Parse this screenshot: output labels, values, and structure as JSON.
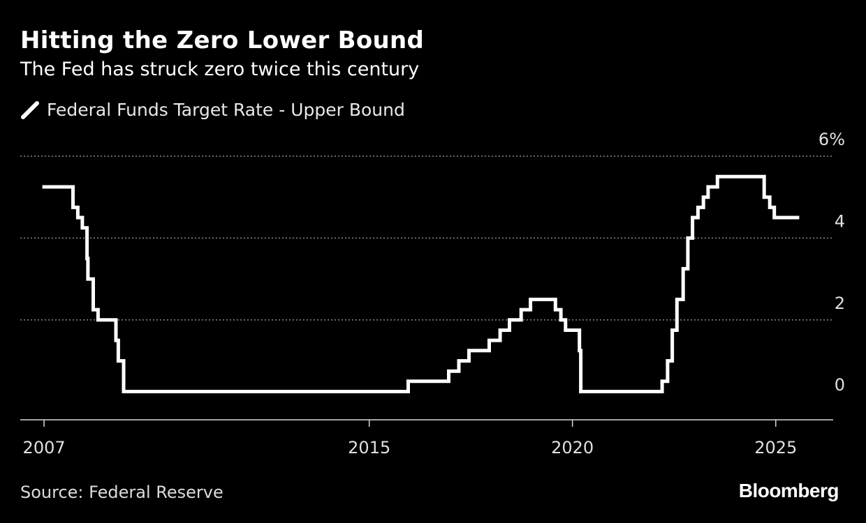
{
  "colors": {
    "background": "#000000",
    "text": "#ffffff",
    "series": "#ffffff",
    "grid": "#8a8a8a"
  },
  "chart_data": {
    "type": "line",
    "step": true,
    "title": "Hitting the Zero Lower Bound",
    "subtitle": "The Fed has struck zero twice this century",
    "xlabel": "",
    "ylabel": "",
    "xlim": [
      "2006-06-01",
      "2026-06-01"
    ],
    "ylim": [
      -0.44,
      6
    ],
    "grid": true,
    "legend_position": "top-left",
    "y_axis_side": "right",
    "y_ticks": [
      {
        "value": 0,
        "label": "0"
      },
      {
        "value": 2,
        "label": "2"
      },
      {
        "value": 4,
        "label": "4"
      },
      {
        "value": 6,
        "label": "6%"
      }
    ],
    "x_ticks": [
      {
        "date": "2007-01-01",
        "label": "2007"
      },
      {
        "date": "2015-01-01",
        "label": "2015"
      },
      {
        "date": "2020-01-01",
        "label": "2020"
      },
      {
        "date": "2025-01-01",
        "label": "2025"
      }
    ],
    "series": [
      {
        "name": "Federal Funds Target Rate - Upper Bound",
        "points": [
          [
            "2007-01-01",
            5.25
          ],
          [
            "2007-09-18",
            4.75
          ],
          [
            "2007-10-31",
            4.5
          ],
          [
            "2007-12-11",
            4.25
          ],
          [
            "2008-01-22",
            3.5
          ],
          [
            "2008-01-30",
            3.0
          ],
          [
            "2008-03-18",
            2.25
          ],
          [
            "2008-04-30",
            2.0
          ],
          [
            "2008-10-08",
            1.5
          ],
          [
            "2008-10-29",
            1.0
          ],
          [
            "2008-12-16",
            0.25
          ],
          [
            "2015-12-17",
            0.5
          ],
          [
            "2016-12-15",
            0.75
          ],
          [
            "2017-03-16",
            1.0
          ],
          [
            "2017-06-15",
            1.25
          ],
          [
            "2017-12-14",
            1.5
          ],
          [
            "2018-03-22",
            1.75
          ],
          [
            "2018-06-14",
            2.0
          ],
          [
            "2018-09-27",
            2.25
          ],
          [
            "2018-12-20",
            2.5
          ],
          [
            "2019-08-01",
            2.25
          ],
          [
            "2019-09-19",
            2.0
          ],
          [
            "2019-10-31",
            1.75
          ],
          [
            "2020-03-04",
            1.25
          ],
          [
            "2020-03-16",
            0.25
          ],
          [
            "2022-03-17",
            0.5
          ],
          [
            "2022-05-05",
            1.0
          ],
          [
            "2022-06-16",
            1.75
          ],
          [
            "2022-07-28",
            2.5
          ],
          [
            "2022-09-22",
            3.25
          ],
          [
            "2022-11-03",
            4.0
          ],
          [
            "2022-12-15",
            4.5
          ],
          [
            "2023-02-02",
            4.75
          ],
          [
            "2023-03-23",
            5.0
          ],
          [
            "2023-05-04",
            5.25
          ],
          [
            "2023-07-27",
            5.5
          ],
          [
            "2024-09-19",
            5.0
          ],
          [
            "2024-11-08",
            4.75
          ],
          [
            "2024-12-19",
            4.5
          ],
          [
            "2025-07-15",
            4.5
          ]
        ]
      }
    ]
  },
  "footer": {
    "source": "Source: Federal Reserve",
    "brand": "Bloomberg"
  }
}
